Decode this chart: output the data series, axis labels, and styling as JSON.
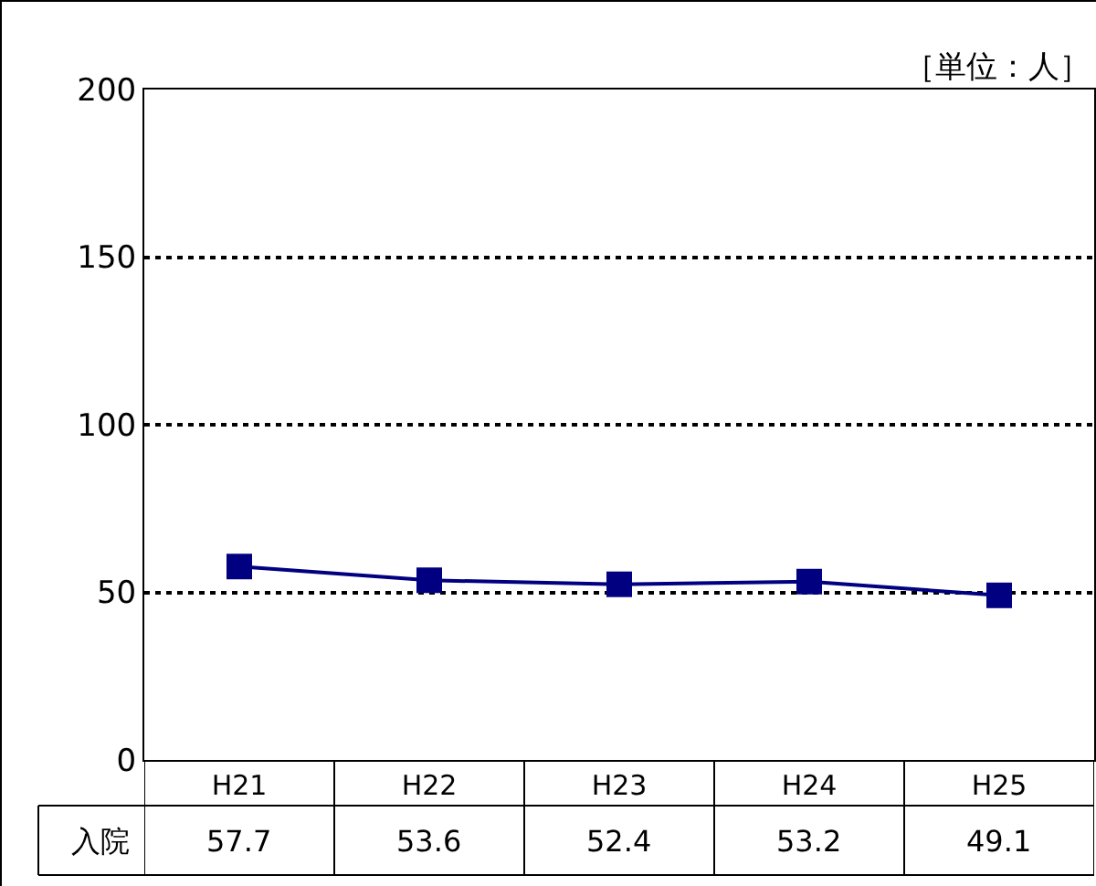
{
  "chart_data": {
    "type": "line",
    "annotations": [
      "［単位：人］"
    ],
    "categories": [
      "H21",
      "H22",
      "H23",
      "H24",
      "H25"
    ],
    "series": [
      {
        "name": "入院",
        "color": "#000080",
        "values": [
          57.7,
          53.6,
          52.4,
          53.2,
          49.1
        ]
      }
    ],
    "ylim": [
      0,
      200
    ],
    "yticks": [
      0,
      50,
      100,
      150,
      200
    ],
    "grid": "y",
    "legend": false,
    "marker": "square",
    "line_style": "solid",
    "data_labels": true
  }
}
